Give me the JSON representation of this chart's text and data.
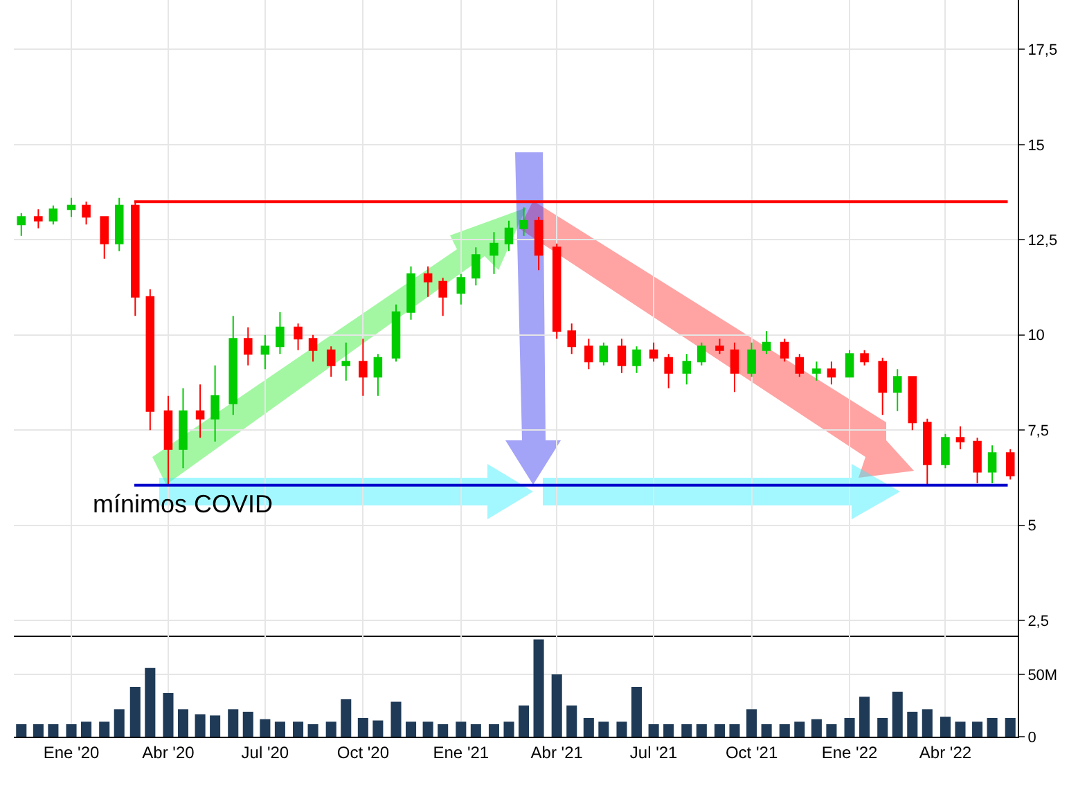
{
  "chart_data": [
    {
      "type": "candlestick",
      "x": [
        "2019-11-15",
        "2019-12-01",
        "2019-12-15",
        "2020-01-01",
        "2020-01-15",
        "2020-02-01",
        "2020-02-15",
        "2020-03-01",
        "2020-03-15",
        "2020-04-01",
        "2020-04-15",
        "2020-05-01",
        "2020-05-15",
        "2020-06-01",
        "2020-06-15",
        "2020-07-01",
        "2020-07-15",
        "2020-08-01",
        "2020-08-15",
        "2020-09-01",
        "2020-09-15",
        "2020-10-01",
        "2020-10-15",
        "2020-11-01",
        "2020-11-15",
        "2020-12-01",
        "2020-12-15",
        "2021-01-01",
        "2021-01-15",
        "2021-02-01",
        "2021-02-15",
        "2021-03-01",
        "2021-03-15",
        "2021-04-01",
        "2021-04-15",
        "2021-05-01",
        "2021-05-15",
        "2021-06-01",
        "2021-06-15",
        "2021-07-01",
        "2021-07-15",
        "2021-08-01",
        "2021-08-15",
        "2021-09-01",
        "2021-09-15",
        "2021-10-01",
        "2021-10-15",
        "2021-11-01",
        "2021-11-15",
        "2021-12-01",
        "2021-12-15",
        "2022-01-01",
        "2022-01-15",
        "2022-02-01",
        "2022-02-15",
        "2022-03-01",
        "2022-03-15",
        "2022-04-01",
        "2022-04-15",
        "2022-05-01",
        "2022-05-15",
        "2022-06-01"
      ],
      "ohlc": [
        [
          12.9,
          13.2,
          12.6,
          13.1
        ],
        [
          13.1,
          13.3,
          12.8,
          13.0
        ],
        [
          13.0,
          13.4,
          12.9,
          13.3
        ],
        [
          13.3,
          13.6,
          13.1,
          13.4
        ],
        [
          13.4,
          13.5,
          12.9,
          13.1
        ],
        [
          13.1,
          13.1,
          12.0,
          12.4
        ],
        [
          12.4,
          13.6,
          12.2,
          13.4
        ],
        [
          13.4,
          13.5,
          10.5,
          11.0
        ],
        [
          11.0,
          11.2,
          7.5,
          8.0
        ],
        [
          8.0,
          8.4,
          6.05,
          7.0
        ],
        [
          7.0,
          8.6,
          6.5,
          8.0
        ],
        [
          8.0,
          8.7,
          7.3,
          7.8
        ],
        [
          7.8,
          9.2,
          7.2,
          8.4
        ],
        [
          8.2,
          10.5,
          7.9,
          9.9
        ],
        [
          9.9,
          10.2,
          9.2,
          9.5
        ],
        [
          9.5,
          10.0,
          9.1,
          9.7
        ],
        [
          9.7,
          10.6,
          9.5,
          10.2
        ],
        [
          10.2,
          10.3,
          9.6,
          9.9
        ],
        [
          9.9,
          10.0,
          9.3,
          9.6
        ],
        [
          9.6,
          9.7,
          8.9,
          9.2
        ],
        [
          9.2,
          9.8,
          8.8,
          9.3
        ],
        [
          9.3,
          9.9,
          8.4,
          8.9
        ],
        [
          8.9,
          9.5,
          8.4,
          9.4
        ],
        [
          9.4,
          10.8,
          9.3,
          10.6
        ],
        [
          10.6,
          11.8,
          10.4,
          11.6
        ],
        [
          11.6,
          11.8,
          11.0,
          11.4
        ],
        [
          11.4,
          11.5,
          10.5,
          11.0
        ],
        [
          11.1,
          11.6,
          10.8,
          11.5
        ],
        [
          11.5,
          12.3,
          11.3,
          12.1
        ],
        [
          12.1,
          12.7,
          11.6,
          12.4
        ],
        [
          12.4,
          13.0,
          12.2,
          12.8
        ],
        [
          12.8,
          13.35,
          12.6,
          13.0
        ],
        [
          13.0,
          13.1,
          11.7,
          12.1
        ],
        [
          12.3,
          12.4,
          9.9,
          10.1
        ],
        [
          10.1,
          10.3,
          9.5,
          9.7
        ],
        [
          9.7,
          9.9,
          9.1,
          9.3
        ],
        [
          9.3,
          9.8,
          9.2,
          9.7
        ],
        [
          9.7,
          9.9,
          9.0,
          9.2
        ],
        [
          9.2,
          9.7,
          9.0,
          9.6
        ],
        [
          9.6,
          9.8,
          9.3,
          9.4
        ],
        [
          9.4,
          9.5,
          8.6,
          9.0
        ],
        [
          9.0,
          9.5,
          8.7,
          9.3
        ],
        [
          9.3,
          9.8,
          9.2,
          9.7
        ],
        [
          9.7,
          9.9,
          9.5,
          9.6
        ],
        [
          9.6,
          9.8,
          8.5,
          9.0
        ],
        [
          9.0,
          9.8,
          8.9,
          9.6
        ],
        [
          9.6,
          10.1,
          9.5,
          9.8
        ],
        [
          9.8,
          9.9,
          9.3,
          9.4
        ],
        [
          9.4,
          9.5,
          8.9,
          9.0
        ],
        [
          9.0,
          9.3,
          8.8,
          9.1
        ],
        [
          9.1,
          9.3,
          8.7,
          8.9
        ],
        [
          8.9,
          9.6,
          8.9,
          9.5
        ],
        [
          9.5,
          9.6,
          9.2,
          9.3
        ],
        [
          9.3,
          9.4,
          7.9,
          8.5
        ],
        [
          8.5,
          9.1,
          8.0,
          8.9
        ],
        [
          8.9,
          8.9,
          7.5,
          7.7
        ],
        [
          7.7,
          7.8,
          6.05,
          6.6
        ],
        [
          6.6,
          7.4,
          6.5,
          7.3
        ],
        [
          7.3,
          7.6,
          7.0,
          7.2
        ],
        [
          7.2,
          7.3,
          6.1,
          6.4
        ],
        [
          6.4,
          7.1,
          6.1,
          6.9
        ],
        [
          6.9,
          7.0,
          6.2,
          6.3
        ]
      ],
      "colors": [
        "#00cc00",
        "#ff0000",
        "#00cc00",
        "#00cc00",
        "#ff0000",
        "#ff0000",
        "#00cc00",
        "#ff0000",
        "#ff0000",
        "#ff0000",
        "#00cc00",
        "#ff0000",
        "#00cc00",
        "#00cc00",
        "#ff0000",
        "#00cc00",
        "#00cc00",
        "#ff0000",
        "#ff0000",
        "#ff0000",
        "#00cc00",
        "#ff0000",
        "#00cc00",
        "#00cc00",
        "#00cc00",
        "#ff0000",
        "#ff0000",
        "#00cc00",
        "#00cc00",
        "#00cc00",
        "#00cc00",
        "#00cc00",
        "#ff0000",
        "#ff0000",
        "#ff0000",
        "#ff0000",
        "#00cc00",
        "#ff0000",
        "#00cc00",
        "#ff0000",
        "#ff0000",
        "#00cc00",
        "#00cc00",
        "#ff0000",
        "#ff0000",
        "#00cc00",
        "#00cc00",
        "#ff0000",
        "#ff0000",
        "#00cc00",
        "#ff0000",
        "#00cc00",
        "#ff0000",
        "#ff0000",
        "#00cc00",
        "#ff0000",
        "#ff0000",
        "#00cc00",
        "#ff0000",
        "#ff0000",
        "#00cc00",
        "#ff0000"
      ],
      "xlim": [
        "2019-11-08",
        "2022-06-08"
      ],
      "ylim": [
        2.1,
        18.8
      ],
      "yticks": [
        {
          "value": 2.5,
          "label": "2,5"
        },
        5,
        {
          "value": 7.5,
          "label": "7,5"
        },
        10,
        {
          "value": 12.5,
          "label": "12,5"
        },
        15,
        {
          "value": 17.5,
          "label": "17,5"
        }
      ],
      "xticks": [
        {
          "value": "2020-01-01",
          "label": null
        },
        {
          "value": "2020-04-01",
          "label": null
        },
        {
          "value": "2020-07-01",
          "label": null
        },
        {
          "value": "2020-10-01",
          "label": null
        },
        {
          "value": "2021-01-01",
          "label": null
        },
        {
          "value": "2021-04-01",
          "label": null
        },
        {
          "value": "2021-07-01",
          "label": null
        },
        {
          "value": "2021-10-01",
          "label": null
        },
        {
          "value": "2022-01-01",
          "label": null
        },
        {
          "value": "2022-04-01",
          "label": null
        }
      ],
      "tick_labels": "y",
      "grid": true,
      "legend": false,
      "ref_lines": [
        {
          "axis": "y",
          "value": 13.5,
          "label": null,
          "color": "#ff0000"
        },
        {
          "axis": "y",
          "value": 6.05,
          "label": null,
          "color": "#0000cc"
        }
      ],
      "annotations": [
        {
          "text": "mínimos COVID",
          "x": "2020-04-15",
          "y": 6.05
        }
      ]
    },
    {
      "type": "bar",
      "x": [
        "2019-11-15",
        "2019-12-01",
        "2019-12-15",
        "2020-01-01",
        "2020-01-15",
        "2020-02-01",
        "2020-02-15",
        "2020-03-01",
        "2020-03-15",
        "2020-04-01",
        "2020-04-15",
        "2020-05-01",
        "2020-05-15",
        "2020-06-01",
        "2020-06-15",
        "2020-07-01",
        "2020-07-15",
        "2020-08-01",
        "2020-08-15",
        "2020-09-01",
        "2020-09-15",
        "2020-10-01",
        "2020-10-15",
        "2020-11-01",
        "2020-11-15",
        "2020-12-01",
        "2020-12-15",
        "2021-01-01",
        "2021-01-15",
        "2021-02-01",
        "2021-02-15",
        "2021-03-01",
        "2021-03-15",
        "2021-04-01",
        "2021-04-15",
        "2021-05-01",
        "2021-05-15",
        "2021-06-01",
        "2021-06-15",
        "2021-07-01",
        "2021-07-15",
        "2021-08-01",
        "2021-08-15",
        "2021-09-01",
        "2021-09-15",
        "2021-10-01",
        "2021-10-15",
        "2021-11-01",
        "2021-11-15",
        "2021-12-01",
        "2021-12-15",
        "2022-01-01",
        "2022-01-15",
        "2022-02-01",
        "2022-02-15",
        "2022-03-01",
        "2022-03-15",
        "2022-04-01",
        "2022-04-15",
        "2022-05-01",
        "2022-05-15",
        "2022-06-01"
      ],
      "values": [
        10,
        10,
        10,
        10,
        12,
        12,
        22,
        40,
        55,
        35,
        22,
        18,
        17,
        22,
        20,
        14,
        12,
        12,
        10,
        12,
        30,
        15,
        13,
        28,
        12,
        12,
        10,
        12,
        10,
        10,
        12,
        25,
        78,
        50,
        25,
        15,
        12,
        12,
        40,
        10,
        10,
        10,
        10,
        10,
        10,
        22,
        10,
        10,
        12,
        14,
        10,
        15,
        32,
        15,
        36,
        20,
        22,
        16,
        12,
        12,
        15,
        15
      ],
      "color": "#1f3a56",
      "xlim": [
        "2019-11-08",
        "2022-06-08"
      ],
      "ylim": [
        0,
        81
      ],
      "yticks": [
        0,
        {
          "value": 50,
          "label": "50M"
        }
      ],
      "xticks": [
        {
          "value": "2020-01-01",
          "label": "Ene '20"
        },
        {
          "value": "2020-04-01",
          "label": "Abr '20"
        },
        {
          "value": "2020-07-01",
          "label": "Jul '20"
        },
        {
          "value": "2020-10-01",
          "label": "Oct '20"
        },
        {
          "value": "2021-01-01",
          "label": "Ene '21"
        },
        {
          "value": "2021-04-01",
          "label": "Abr '21"
        },
        {
          "value": "2021-07-01",
          "label": "Jul '21"
        },
        {
          "value": "2021-10-01",
          "label": "Oct '21"
        },
        {
          "value": "2022-01-01",
          "label": "Ene '22"
        },
        {
          "value": "2022-04-01",
          "label": "Abr '22"
        }
      ],
      "grid": true,
      "legend": false
    }
  ]
}
